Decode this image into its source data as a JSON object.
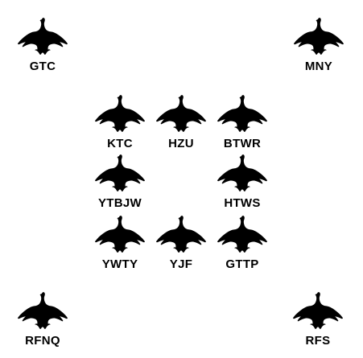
{
  "icon": "goose-silhouette-icon",
  "icon_color": "#000000",
  "birds": [
    {
      "label": "GTC"
    },
    {
      "label": "MNY"
    },
    {
      "label": "KTC"
    },
    {
      "label": "HZU"
    },
    {
      "label": "BTWR"
    },
    {
      "label": "YTBJW"
    },
    {
      "label": "HTWS"
    },
    {
      "label": "YWTY"
    },
    {
      "label": "YJF"
    },
    {
      "label": "GTTP"
    },
    {
      "label": "RFNQ"
    },
    {
      "label": "RFS"
    }
  ]
}
